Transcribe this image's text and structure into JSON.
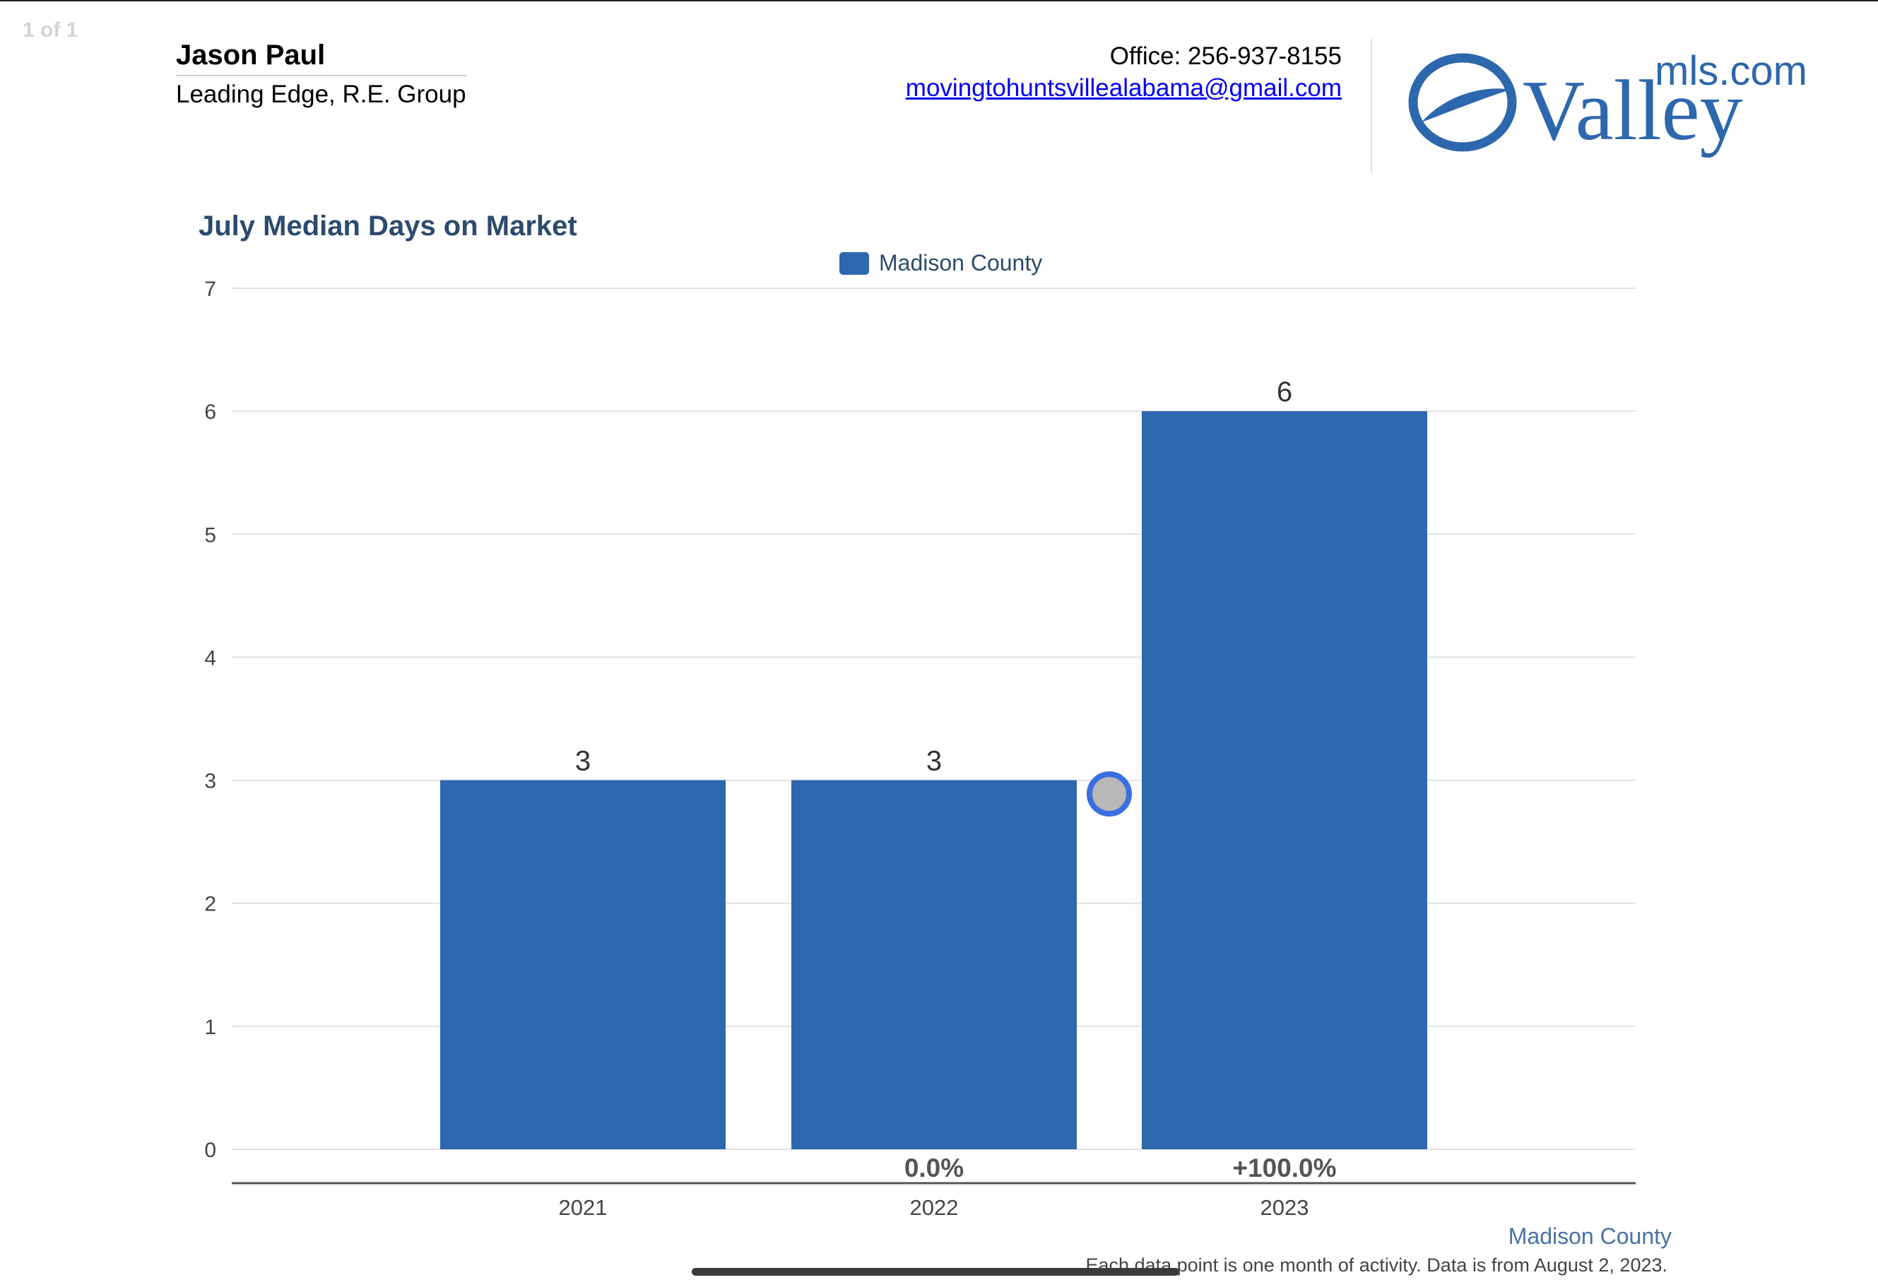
{
  "header": {
    "page_indicator": "1 of 1",
    "agent_name": "Jason Paul",
    "agent_company": "Leading Edge, R.E. Group",
    "office_phone": "Office: 256-937-8155",
    "email": "movingtohuntsvillealabama@gmail.com",
    "logo": {
      "word": "Valley",
      "suffix": "mls.com",
      "color": "#2d67ad"
    }
  },
  "chart_data": {
    "type": "bar",
    "title": "July Median Days on Market",
    "categories": [
      "2021",
      "2022",
      "2023"
    ],
    "series": [
      {
        "name": "Madison County",
        "values": [
          3,
          3,
          6
        ],
        "color": "#2d67ad"
      }
    ],
    "data_labels": [
      "3",
      "3",
      "6"
    ],
    "change_labels": [
      "",
      "0.0%",
      "+100.0%"
    ],
    "ylim": [
      0,
      7
    ],
    "yticks": [
      0,
      1,
      2,
      3,
      4,
      5,
      6,
      7
    ],
    "grid": true,
    "legend_position": "top-center"
  },
  "footer": {
    "region_label": "Madison County",
    "note": "Each data point is one month of activity. Data is from August 2, 2023."
  }
}
